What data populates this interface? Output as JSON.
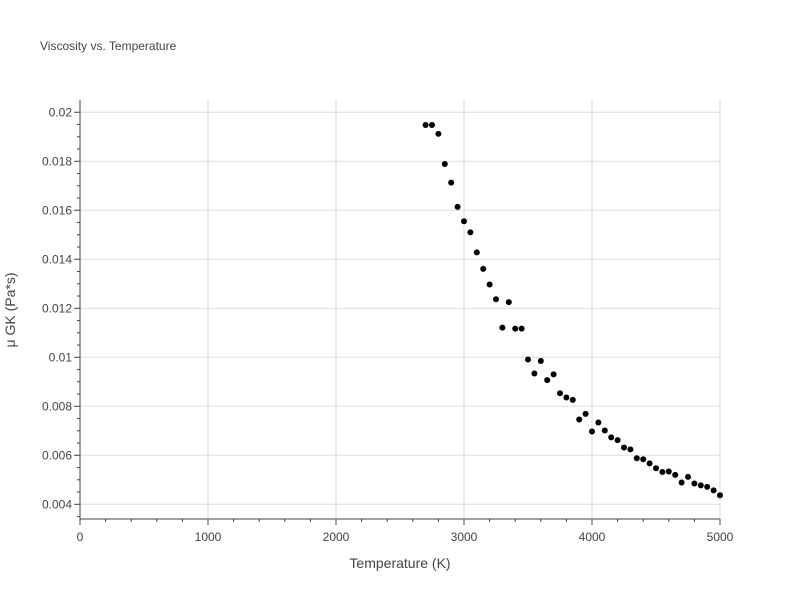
{
  "chart_data": {
    "type": "scatter",
    "title": "Viscosity vs. Temperature",
    "xlabel": "Temperature (K)",
    "ylabel": "μ GK (Pa*s)",
    "xlim": [
      0,
      5000
    ],
    "ylim": [
      0.0034,
      0.0205
    ],
    "x_ticks": [
      0,
      1000,
      2000,
      3000,
      4000,
      5000
    ],
    "x_tick_labels": [
      "0",
      "1000",
      "2000",
      "3000",
      "4000",
      "5000"
    ],
    "y_ticks": [
      0.004,
      0.006,
      0.008,
      0.01,
      0.012,
      0.014,
      0.016,
      0.018,
      0.02
    ],
    "y_tick_labels": [
      "0.004",
      "0.006",
      "0.008",
      "0.01",
      "0.012",
      "0.014",
      "0.016",
      "0.018",
      "0.02"
    ],
    "grid": true,
    "marker_color": "#000000",
    "series": [
      {
        "x": [
          2700,
          2750,
          2800,
          2850,
          2900,
          2950,
          3000,
          3050,
          3100,
          3150,
          3200,
          3250,
          3300,
          3350,
          3400,
          3450,
          3500,
          3550,
          3600,
          3650,
          3700,
          3750,
          3800,
          3850,
          3900,
          3950,
          4000,
          4050,
          4100,
          4150,
          4200,
          4250,
          4300,
          4350,
          4400,
          4450,
          4500,
          4550,
          4600,
          4650,
          4700,
          4750,
          4800,
          4850,
          4900,
          4950,
          5000
        ],
        "y": [
          0.01948,
          0.01948,
          0.01912,
          0.01789,
          0.01713,
          0.01614,
          0.01555,
          0.0151,
          0.01428,
          0.01361,
          0.01297,
          0.01237,
          0.01121,
          0.01225,
          0.01117,
          0.01117,
          0.00991,
          0.00934,
          0.00985,
          0.00907,
          0.0093,
          0.00853,
          0.00836,
          0.00826,
          0.00746,
          0.00769,
          0.00697,
          0.00734,
          0.00701,
          0.00673,
          0.00662,
          0.00632,
          0.00624,
          0.00588,
          0.00584,
          0.00567,
          0.00547,
          0.00532,
          0.00534,
          0.0052,
          0.00489,
          0.00512,
          0.00485,
          0.00477,
          0.00471,
          0.00457,
          0.00437
        ]
      }
    ]
  }
}
